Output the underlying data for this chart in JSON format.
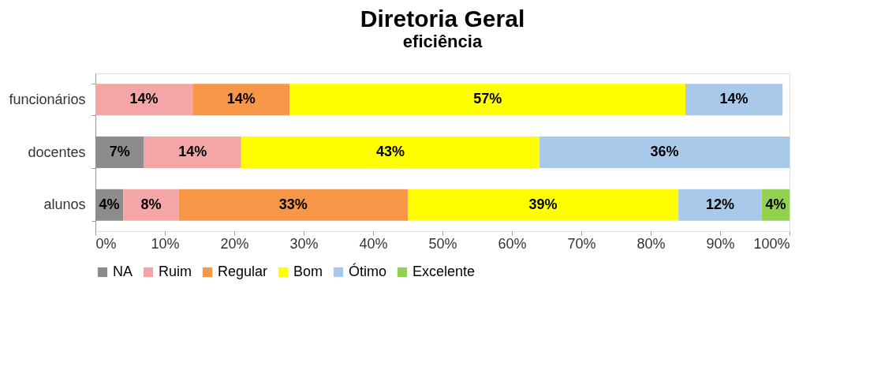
{
  "chart_data": {
    "type": "bar",
    "title": "Diretoria Geral",
    "subtitle": "eficiência",
    "orientation": "horizontal",
    "stacked": true,
    "categories": [
      "funcionários",
      "docentes",
      "alunos"
    ],
    "series": [
      {
        "name": "NA",
        "color": "#8c8c8c",
        "values": [
          null,
          7,
          4
        ],
        "value_labels": [
          null,
          "7%",
          "4%"
        ]
      },
      {
        "name": "Ruim",
        "color": "#f4a6a6",
        "values": [
          14,
          14,
          8
        ],
        "value_labels": [
          "14%",
          "14%",
          "8%"
        ]
      },
      {
        "name": "Regular",
        "color": "#f79646",
        "values": [
          14,
          null,
          33
        ],
        "value_labels": [
          "14%",
          null,
          "33%"
        ]
      },
      {
        "name": "Bom",
        "color": "#ffff00",
        "values": [
          57,
          43,
          39
        ],
        "value_labels": [
          "57%",
          "43%",
          "39%"
        ]
      },
      {
        "name": "Ótimo",
        "color": "#a9c9ea",
        "values": [
          14,
          36,
          12
        ],
        "value_labels": [
          "14%",
          "36%",
          "12%"
        ]
      },
      {
        "name": "Excelente",
        "color": "#92d050",
        "values": [
          null,
          null,
          4
        ],
        "value_labels": [
          null,
          null,
          "4%"
        ]
      }
    ],
    "xlim": [
      0,
      100
    ],
    "xticks": [
      {
        "value": 0,
        "label": "0%"
      },
      {
        "value": 10,
        "label": "10%"
      },
      {
        "value": 20,
        "label": "20%"
      },
      {
        "value": 30,
        "label": "30%"
      },
      {
        "value": 40,
        "label": "40%"
      },
      {
        "value": 50,
        "label": "50%"
      },
      {
        "value": 60,
        "label": "60%"
      },
      {
        "value": 70,
        "label": "70%"
      },
      {
        "value": 80,
        "label": "80%"
      },
      {
        "value": 90,
        "label": "90%"
      },
      {
        "value": 100,
        "label": "100%"
      }
    ],
    "grid": false,
    "legend": "bottom"
  }
}
